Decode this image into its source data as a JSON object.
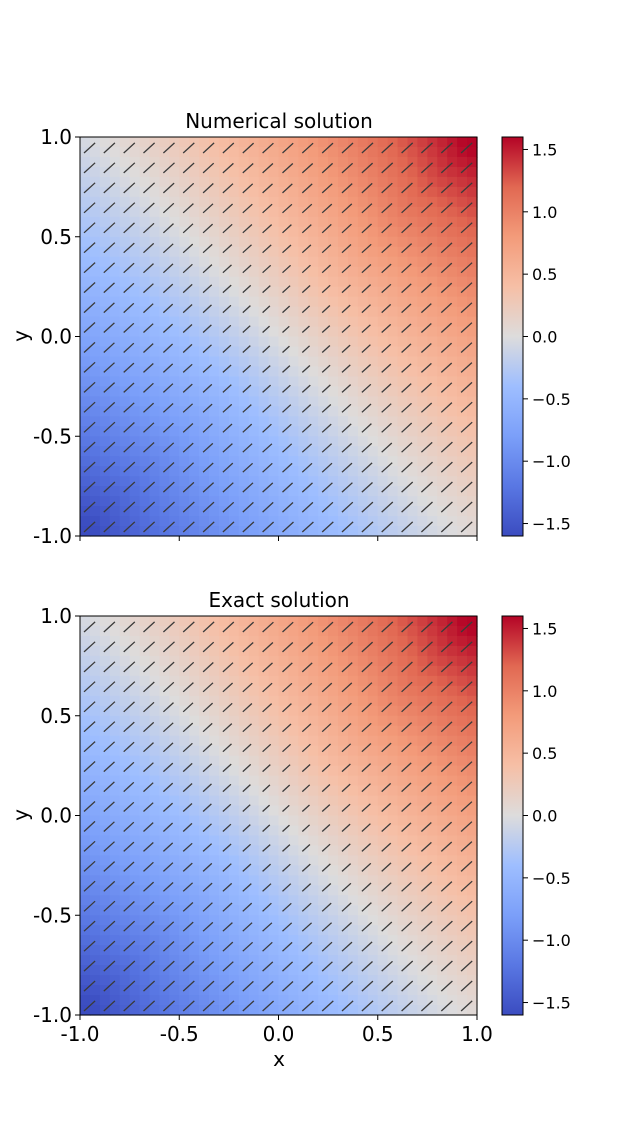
{
  "chart_data": [
    {
      "type": "heatmap",
      "title": "Numerical solution",
      "xlabel": "",
      "ylabel": "y",
      "xlim": [
        -1.0,
        1.0
      ],
      "ylim": [
        -1.0,
        1.0
      ],
      "x_ticks": [
        "-1.0",
        "-0.5",
        "0.0",
        "0.5",
        "1.0"
      ],
      "x_tick_labels_shown": false,
      "y_ticks": [
        "-1.0",
        "-0.5",
        "0.0",
        "0.5",
        "1.0"
      ],
      "colormap": "coolwarm",
      "color_range": [
        -1.6,
        1.6
      ],
      "colorbar_ticks": [
        "−1.5",
        "−1.0",
        "−0.5",
        "0.0",
        "0.5",
        "1.0",
        "1.5"
      ],
      "overlay": "gradient arrows (quiver)",
      "grid": false
    },
    {
      "type": "heatmap",
      "title": "Exact solution",
      "xlabel": "x",
      "ylabel": "y",
      "xlim": [
        -1.0,
        1.0
      ],
      "ylim": [
        -1.0,
        1.0
      ],
      "x_ticks": [
        "-1.0",
        "-0.5",
        "0.0",
        "0.5",
        "1.0"
      ],
      "x_tick_labels_shown": true,
      "y_ticks": [
        "-1.0",
        "-0.5",
        "0.0",
        "0.5",
        "1.0"
      ],
      "colormap": "coolwarm",
      "color_range": [
        -1.6,
        1.6
      ],
      "colorbar_ticks": [
        "−1.5",
        "−1.0",
        "−0.5",
        "0.0",
        "0.5",
        "1.0",
        "1.5"
      ],
      "overlay": "gradient arrows (quiver)",
      "grid": false
    }
  ]
}
